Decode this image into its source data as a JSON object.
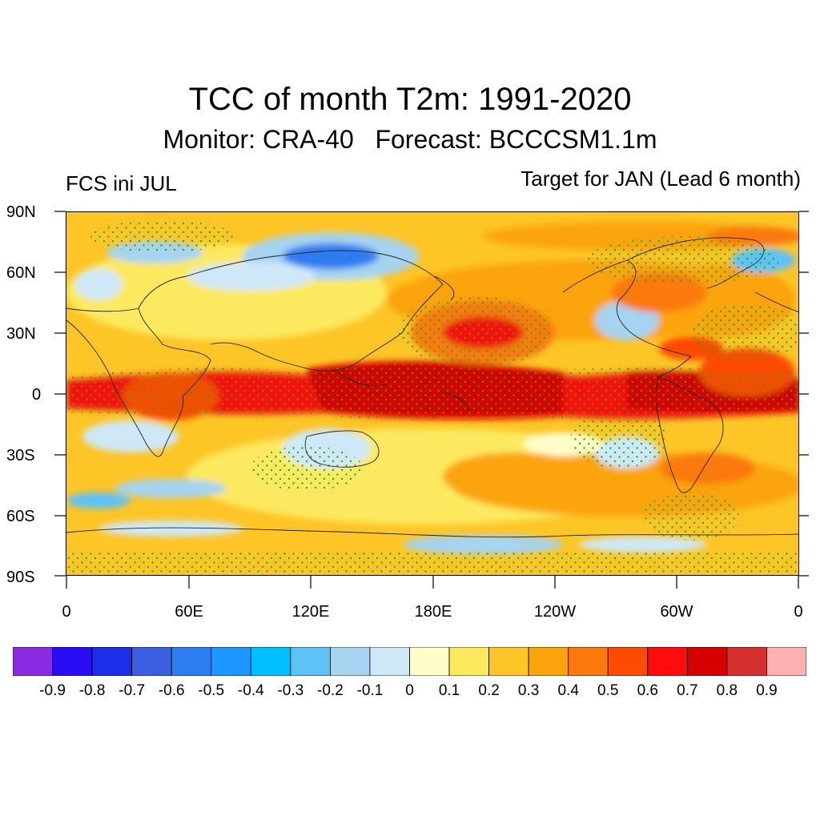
{
  "title": "TCC of month T2m: 1991-2020",
  "subtitle": "Monitor: CRA-40   Forecast: BCCCSM1.1m",
  "left_label": "FCS ini JUL",
  "right_label": "Target for JAN (Lead 6 month)",
  "lat_labels": [
    "90N",
    "60N",
    "30N",
    "0",
    "30S",
    "60S",
    "90S"
  ],
  "lon_labels": [
    "0",
    "60E",
    "120E",
    "180E",
    "120W",
    "60W",
    "0"
  ],
  "map_data": {
    "variable": "Temporal correlation coefficient (TCC) of monthly 2m temperature",
    "period": "1991-2020",
    "colorbar": {
      "levels": [
        "-0.9",
        "-0.8",
        "-0.7",
        "-0.6",
        "-0.5",
        "-0.4",
        "-0.3",
        "-0.2",
        "-0.1",
        "0",
        "0.1",
        "0.2",
        "0.3",
        "0.4",
        "0.5",
        "0.6",
        "0.7",
        "0.8",
        "0.9"
      ],
      "colors": [
        "#8a2be2",
        "#2a0df5",
        "#1e2de8",
        "#3b5fe0",
        "#2d7cf0",
        "#1e96ff",
        "#00bfff",
        "#5ec2f5",
        "#a5d3f0",
        "#cfe8f8",
        "#fffec8",
        "#fde95e",
        "#fdc526",
        "#fba40b",
        "#fa7a0c",
        "#fc4c02",
        "#ff0d0d",
        "#d60000",
        "#d43030",
        "#ffb0b0"
      ]
    },
    "stipple_color": "#1fae1f"
  }
}
